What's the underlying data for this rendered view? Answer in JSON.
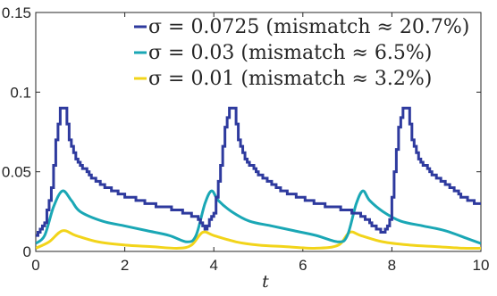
{
  "chart_data": {
    "type": "line",
    "xlabel": "t",
    "ylabel": "",
    "xlim": [
      0,
      10
    ],
    "ylim": [
      0,
      0.15
    ],
    "x_ticks": [
      "0",
      "2",
      "4",
      "6",
      "8",
      "10"
    ],
    "y_ticks": [
      "0",
      "0.05",
      "0.1",
      "0.15"
    ],
    "grid": false,
    "legend_position": "top-right",
    "series": [
      {
        "name": "σ = 0.0725 (mismatch ≈ 20.7%)",
        "color": "#2e3a9e",
        "stepped": true,
        "points": [
          [
            0,
            0.01
          ],
          [
            0.2,
            0.018
          ],
          [
            0.35,
            0.04
          ],
          [
            0.45,
            0.07
          ],
          [
            0.55,
            0.09
          ],
          [
            0.65,
            0.09
          ],
          [
            0.75,
            0.07
          ],
          [
            0.9,
            0.058
          ],
          [
            1.2,
            0.048
          ],
          [
            1.6,
            0.04
          ],
          [
            2.0,
            0.035
          ],
          [
            2.5,
            0.03
          ],
          [
            3.0,
            0.027
          ],
          [
            3.4,
            0.024
          ],
          [
            3.6,
            0.021
          ],
          [
            3.8,
            0.014
          ],
          [
            4.0,
            0.025
          ],
          [
            4.15,
            0.055
          ],
          [
            4.25,
            0.078
          ],
          [
            4.35,
            0.09
          ],
          [
            4.45,
            0.09
          ],
          [
            4.55,
            0.07
          ],
          [
            4.7,
            0.058
          ],
          [
            5.0,
            0.048
          ],
          [
            5.4,
            0.04
          ],
          [
            5.8,
            0.035
          ],
          [
            6.3,
            0.03
          ],
          [
            6.8,
            0.027
          ],
          [
            7.2,
            0.024
          ],
          [
            7.45,
            0.02
          ],
          [
            7.6,
            0.015
          ],
          [
            7.8,
            0.011
          ],
          [
            7.95,
            0.02
          ],
          [
            8.05,
            0.05
          ],
          [
            8.15,
            0.078
          ],
          [
            8.25,
            0.09
          ],
          [
            8.35,
            0.09
          ],
          [
            8.45,
            0.07
          ],
          [
            8.6,
            0.058
          ],
          [
            8.9,
            0.048
          ],
          [
            9.3,
            0.04
          ],
          [
            9.6,
            0.034
          ],
          [
            10.0,
            0.029
          ]
        ]
      },
      {
        "name": "σ = 0.03 (mismatch ≈ 6.5%)",
        "color": "#1aa7b5",
        "stepped": false,
        "points": [
          [
            0,
            0.005
          ],
          [
            0.2,
            0.01
          ],
          [
            0.4,
            0.028
          ],
          [
            0.6,
            0.038
          ],
          [
            0.8,
            0.032
          ],
          [
            1.0,
            0.025
          ],
          [
            1.5,
            0.019
          ],
          [
            2.0,
            0.016
          ],
          [
            2.5,
            0.013
          ],
          [
            3.0,
            0.01
          ],
          [
            3.4,
            0.006
          ],
          [
            3.6,
            0.01
          ],
          [
            3.8,
            0.03
          ],
          [
            3.95,
            0.038
          ],
          [
            4.1,
            0.032
          ],
          [
            4.4,
            0.025
          ],
          [
            4.8,
            0.019
          ],
          [
            5.3,
            0.016
          ],
          [
            5.8,
            0.013
          ],
          [
            6.3,
            0.01
          ],
          [
            6.8,
            0.006
          ],
          [
            7.0,
            0.01
          ],
          [
            7.2,
            0.03
          ],
          [
            7.35,
            0.038
          ],
          [
            7.5,
            0.032
          ],
          [
            7.8,
            0.025
          ],
          [
            8.2,
            0.019
          ],
          [
            8.7,
            0.016
          ],
          [
            9.2,
            0.013
          ],
          [
            9.7,
            0.008
          ],
          [
            10.0,
            0.005
          ]
        ]
      },
      {
        "name": "σ = 0.01 (mismatch ≈ 3.2%)",
        "color": "#f2d41a",
        "stepped": false,
        "points": [
          [
            0,
            0.002
          ],
          [
            0.3,
            0.006
          ],
          [
            0.6,
            0.013
          ],
          [
            0.9,
            0.01
          ],
          [
            1.4,
            0.006
          ],
          [
            2.0,
            0.004
          ],
          [
            2.6,
            0.003
          ],
          [
            3.2,
            0.002
          ],
          [
            3.5,
            0.004
          ],
          [
            3.75,
            0.012
          ],
          [
            4.0,
            0.01
          ],
          [
            4.5,
            0.006
          ],
          [
            5.0,
            0.004
          ],
          [
            5.6,
            0.003
          ],
          [
            6.3,
            0.002
          ],
          [
            6.8,
            0.004
          ],
          [
            7.05,
            0.012
          ],
          [
            7.3,
            0.01
          ],
          [
            7.8,
            0.006
          ],
          [
            8.4,
            0.004
          ],
          [
            9.0,
            0.003
          ],
          [
            9.6,
            0.002
          ],
          [
            10.0,
            0.002
          ]
        ]
      }
    ]
  }
}
